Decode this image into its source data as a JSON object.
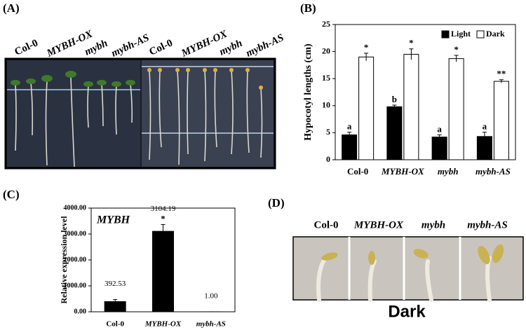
{
  "panels": {
    "a": "(A)",
    "b": "(B)",
    "c": "(C)",
    "d": "(D)"
  },
  "photo_a": {
    "labels_light": [
      "Col-0",
      "MYBH-OX",
      "mybh",
      "mybh-AS"
    ],
    "labels_dark": [
      "Col-0",
      "MYBH-OX",
      "mybh",
      "mybh-AS"
    ]
  },
  "photo_d": {
    "labels": [
      "Col-0",
      "MYBH-OX",
      "mybh",
      "mybh-AS"
    ],
    "caption": "Dark"
  },
  "chart_data": [
    {
      "type": "bar",
      "y_label": "Hypocotyl lengths (cm)",
      "categories": [
        "Col-0",
        "MYBH-OX",
        "mybh",
        "mybh-AS"
      ],
      "series": [
        {
          "name": "Light",
          "color": "#000000",
          "values": [
            4.6,
            9.8,
            4.2,
            4.3
          ],
          "errors": [
            0.5,
            0.3,
            0.4,
            0.8
          ],
          "annotations": [
            "a",
            "b",
            "a",
            "a"
          ]
        },
        {
          "name": "Dark",
          "color": "#ffffff",
          "values": [
            19.0,
            19.5,
            18.7,
            14.5
          ],
          "errors": [
            0.7,
            1.0,
            0.6,
            0.3
          ],
          "annotations": [
            "*",
            "*",
            "*",
            "**"
          ]
        }
      ],
      "ylim": [
        0,
        25
      ],
      "yticks": [
        0,
        5,
        10,
        15,
        20,
        25
      ],
      "legend": "upper right"
    },
    {
      "type": "bar",
      "y_label": "Relative expression level",
      "annotation": "MYBH",
      "categories": [
        "Col-0",
        "MYBH-OX",
        "mybh-AS"
      ],
      "values": [
        392.53,
        3104.19,
        1.0
      ],
      "value_labels": [
        "392.53",
        "3104.19",
        "1.00"
      ],
      "errors": [
        80,
        260,
        0
      ],
      "annotations": [
        null,
        "*",
        null
      ],
      "color": "#000000",
      "ylim": [
        0,
        4000
      ],
      "yticks": [
        {
          "value": 0,
          "label": "0.00"
        },
        {
          "value": 1000,
          "label": "1000.00"
        },
        {
          "value": 2000,
          "label": "2000.00"
        },
        {
          "value": 3000,
          "label": "3000.00"
        },
        {
          "value": 4000,
          "label": "4000.00"
        }
      ]
    }
  ]
}
